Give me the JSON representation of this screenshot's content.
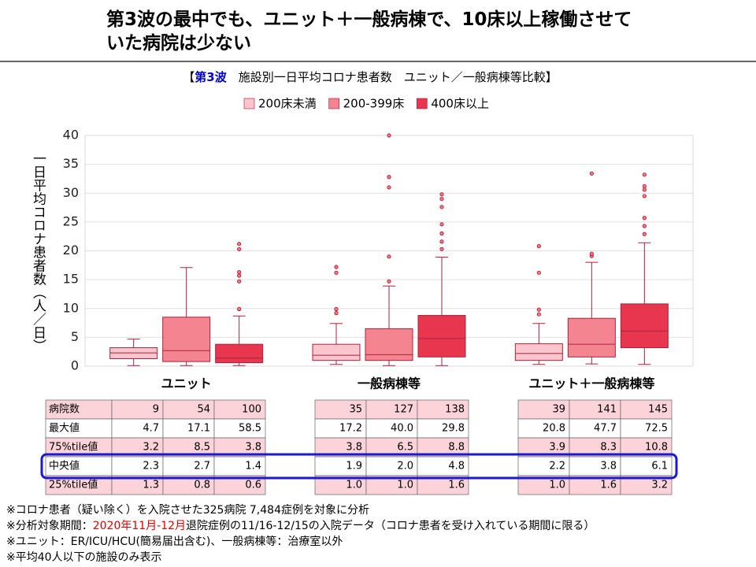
{
  "header": {
    "title_lines": [
      "第3波の最中でも、ユニット＋一般病棟で、10床以上稼働させて",
      "いた病院は少ない"
    ]
  },
  "chart_data": {
    "type": "box",
    "title_open": "【",
    "title_highlight": "第3波",
    "title_rest": "　施設別一日平均コロナ患者数　ユニット／一般病棟等比較】",
    "y_label": "一日平均コロナ患者数（人／日）",
    "categories": [
      "ユニット",
      "一般病棟等",
      "ユニット＋一般病棟等"
    ],
    "ylim": [
      0,
      40
    ],
    "yticks": [
      0,
      5,
      10,
      15,
      20,
      25,
      30,
      35,
      40
    ],
    "grid": true,
    "series": [
      {
        "name": "200床未満",
        "color": "#fbc5ce",
        "boxes": [
          {
            "whisker_low": 0.1,
            "q1": 1.3,
            "median": 2.3,
            "q3": 3.2,
            "whisker_high": 4.7,
            "outliers": []
          },
          {
            "whisker_low": 0.3,
            "q1": 1.0,
            "median": 1.9,
            "q3": 3.8,
            "whisker_high": 7.4,
            "outliers": [
              9.2,
              9.9,
              16.2,
              17.2
            ]
          },
          {
            "whisker_low": 0.3,
            "q1": 1.0,
            "median": 2.2,
            "q3": 3.9,
            "whisker_high": 7.4,
            "outliers": [
              9.0,
              9.8,
              16.2,
              20.8
            ]
          }
        ]
      },
      {
        "name": "200-399床",
        "color": "#f4848f",
        "boxes": [
          {
            "whisker_low": 0.1,
            "q1": 0.8,
            "median": 2.7,
            "q3": 8.5,
            "whisker_high": 17.1,
            "outliers": []
          },
          {
            "whisker_low": 0.1,
            "q1": 1.0,
            "median": 2.0,
            "q3": 6.5,
            "whisker_high": 13.9,
            "outliers": [
              14.7,
              19.0,
              31.0,
              32.8,
              40.0
            ]
          },
          {
            "whisker_low": 0.4,
            "q1": 1.6,
            "median": 3.8,
            "q3": 8.3,
            "whisker_high": 18.0,
            "outliers": [
              19.1,
              19.5,
              33.4
            ]
          }
        ]
      },
      {
        "name": "400床以上",
        "color": "#e8364f",
        "boxes": [
          {
            "whisker_low": 0.1,
            "q1": 0.6,
            "median": 1.4,
            "q3": 3.8,
            "whisker_high": 8.7,
            "outliers": [
              9.9,
              14.7,
              15.7,
              16.3,
              20.3,
              21.2
            ]
          },
          {
            "whisker_low": 0.1,
            "q1": 1.6,
            "median": 4.8,
            "q3": 8.8,
            "whisker_high": 18.9,
            "outliers": [
              20.3,
              21.6,
              23.0,
              24.6,
              27.6,
              29.0,
              29.8
            ]
          },
          {
            "whisker_low": 0.3,
            "q1": 3.2,
            "median": 6.1,
            "q3": 10.8,
            "whisker_high": 21.4,
            "outliers": [
              22.9,
              24.3,
              25.7,
              29.5,
              30.6,
              31.2,
              33.2
            ]
          }
        ]
      }
    ]
  },
  "table": {
    "row_labels": [
      "病院数",
      "最大値",
      "75%tile値",
      "中央値",
      "25%tile値"
    ],
    "groups": [
      {
        "rows": [
          [
            "9",
            "54",
            "100"
          ],
          [
            "4.7",
            "17.1",
            "58.5"
          ],
          [
            "3.2",
            "8.5",
            "3.8"
          ],
          [
            "2.3",
            "2.7",
            "1.4"
          ],
          [
            "1.3",
            "0.8",
            "0.6"
          ]
        ]
      },
      {
        "rows": [
          [
            "35",
            "127",
            "138"
          ],
          [
            "17.2",
            "40.0",
            "29.8"
          ],
          [
            "3.8",
            "6.5",
            "8.8"
          ],
          [
            "1.9",
            "2.0",
            "4.8"
          ],
          [
            "1.0",
            "1.0",
            "1.6"
          ]
        ]
      },
      {
        "rows": [
          [
            "39",
            "141",
            "145"
          ],
          [
            "20.8",
            "47.7",
            "72.5"
          ],
          [
            "3.9",
            "8.3",
            "10.8"
          ],
          [
            "2.2",
            "3.8",
            "6.1"
          ],
          [
            "1.0",
            "1.6",
            "3.2"
          ]
        ]
      }
    ]
  },
  "notes": [
    {
      "parts": [
        "※コロナ患者（疑い除く）を入院させた325病院 7,484症例を対象に分析"
      ]
    },
    {
      "parts": [
        "※分析対象期間：",
        "2020年11月-12月",
        "退院症例の11/16-12/15の入院データ（コロナ患者を受け入れている期間に限る）"
      ]
    },
    {
      "parts": [
        "※ユニット：ER/ICU/HCU(簡易届出含む)、一般病棟等：治療室以外"
      ]
    },
    {
      "parts": [
        "※平均40人以下の施設のみ表示"
      ]
    }
  ]
}
